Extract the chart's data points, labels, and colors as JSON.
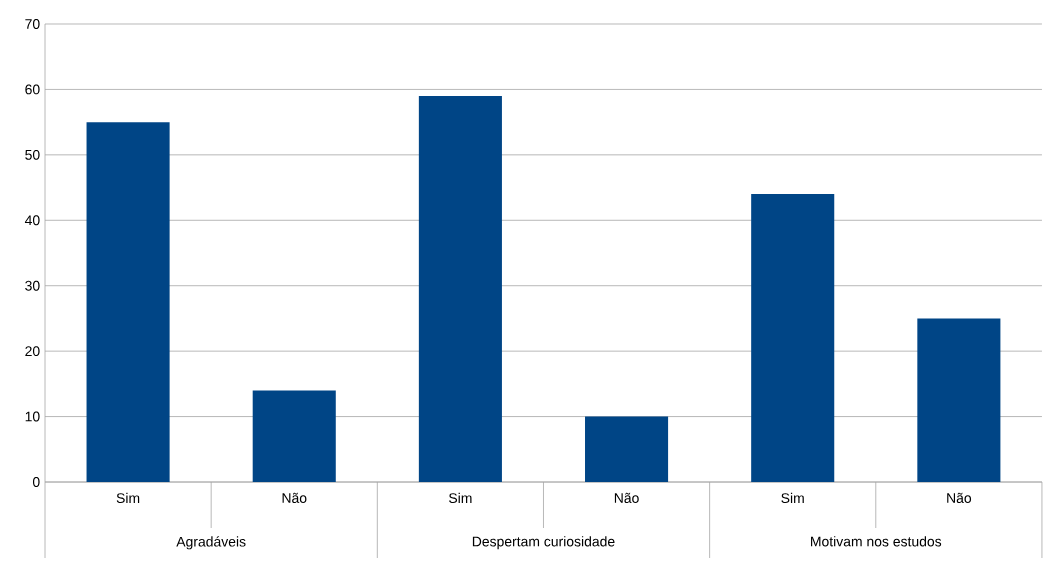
{
  "chart_data": {
    "type": "bar",
    "categories": [
      "Sim",
      "Não",
      "Sim",
      "Não",
      "Sim",
      "Não"
    ],
    "values": [
      55,
      14,
      59,
      10,
      44,
      25
    ],
    "color": "#004586",
    "ylim": [
      0,
      70
    ],
    "yticks": [
      0,
      10,
      20,
      30,
      40,
      50,
      60,
      70
    ],
    "grid": "y",
    "annotations": [
      "Agradáveis",
      "Despertam curiosidade",
      "Motivam nos estudos"
    ]
  }
}
